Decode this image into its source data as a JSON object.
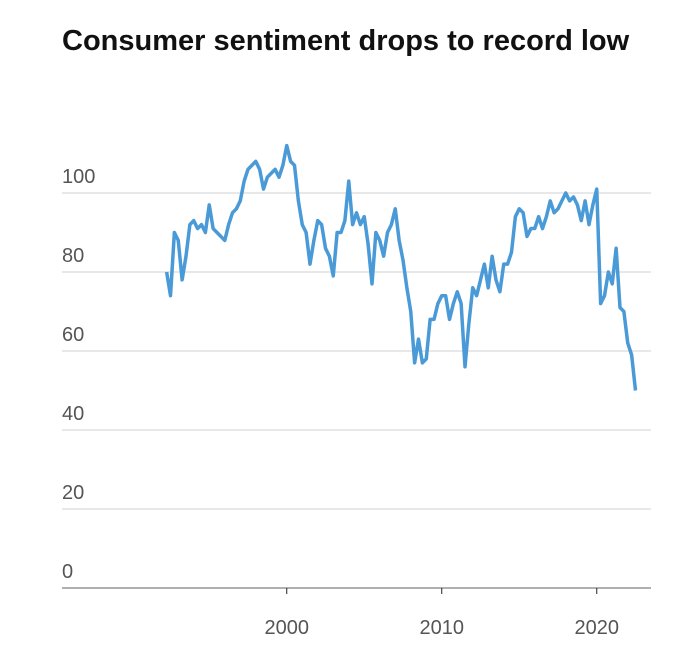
{
  "chart_data": {
    "type": "line",
    "title": "Consumer sentiment drops to record low",
    "x": [
      1992.25,
      1992.5,
      1992.75,
      1993,
      1993.25,
      1993.5,
      1993.75,
      1994,
      1994.25,
      1994.5,
      1994.75,
      1995,
      1995.25,
      1995.5,
      1995.75,
      1996,
      1996.25,
      1996.5,
      1996.75,
      1997,
      1997.25,
      1997.5,
      1997.75,
      1998,
      1998.25,
      1998.5,
      1998.75,
      1999,
      1999.25,
      1999.5,
      1999.75,
      2000,
      2000.25,
      2000.5,
      2000.75,
      2001,
      2001.25,
      2001.5,
      2001.75,
      2002,
      2002.25,
      2002.5,
      2002.75,
      2003,
      2003.25,
      2003.5,
      2003.75,
      2004,
      2004.25,
      2004.5,
      2004.75,
      2005,
      2005.25,
      2005.5,
      2005.75,
      2006,
      2006.25,
      2006.5,
      2006.75,
      2007,
      2007.25,
      2007.5,
      2007.75,
      2008,
      2008.25,
      2008.5,
      2008.75,
      2009,
      2009.25,
      2009.5,
      2009.75,
      2010,
      2010.25,
      2010.5,
      2010.75,
      2011,
      2011.25,
      2011.5,
      2011.75,
      2012,
      2012.25,
      2012.5,
      2012.75,
      2013,
      2013.25,
      2013.5,
      2013.75,
      2014,
      2014.25,
      2014.5,
      2014.75,
      2015,
      2015.25,
      2015.5,
      2015.75,
      2016,
      2016.25,
      2016.5,
      2016.75,
      2017,
      2017.25,
      2017.5,
      2017.75,
      2018,
      2018.25,
      2018.5,
      2018.75,
      2019,
      2019.25,
      2019.5,
      2019.75,
      2020,
      2020.25,
      2020.5,
      2020.75,
      2021,
      2021.25,
      2021.5,
      2021.75,
      2022,
      2022.25,
      2022.5
    ],
    "series": [
      {
        "color": "#4a9ad8",
        "values": [
          80,
          74,
          90,
          88,
          78,
          84,
          92,
          93,
          91,
          92,
          90,
          97,
          91,
          90,
          89,
          88,
          92,
          95,
          96,
          98,
          103,
          106,
          107,
          108,
          106,
          101,
          104,
          105,
          106,
          104,
          107,
          112,
          108,
          107,
          98,
          92,
          90,
          82,
          88,
          93,
          92,
          86,
          84,
          79,
          90,
          90,
          93,
          103,
          92,
          95,
          92,
          94,
          87,
          77,
          90,
          88,
          84,
          90,
          92,
          96,
          88,
          83,
          76,
          70,
          57,
          63,
          57,
          58,
          68,
          68,
          72,
          74,
          74,
          68,
          72,
          75,
          72,
          56,
          67,
          76,
          74,
          78,
          82,
          76,
          84,
          78,
          75,
          82,
          82,
          85,
          94,
          96,
          95,
          89,
          91,
          91,
          94,
          91,
          94,
          98,
          95,
          96,
          98,
          100,
          98,
          99,
          97,
          93,
          98,
          92,
          97,
          101,
          72,
          74,
          80,
          77,
          86,
          71,
          70,
          62,
          59,
          50
        ]
      }
    ],
    "xlim": [
      1985.5,
      2023.5
    ],
    "xticks": [
      2000,
      2010,
      2020
    ],
    "ylim": [
      0,
      112
    ],
    "yticks": [
      0,
      20,
      40,
      60,
      80,
      100
    ],
    "grid": true
  }
}
